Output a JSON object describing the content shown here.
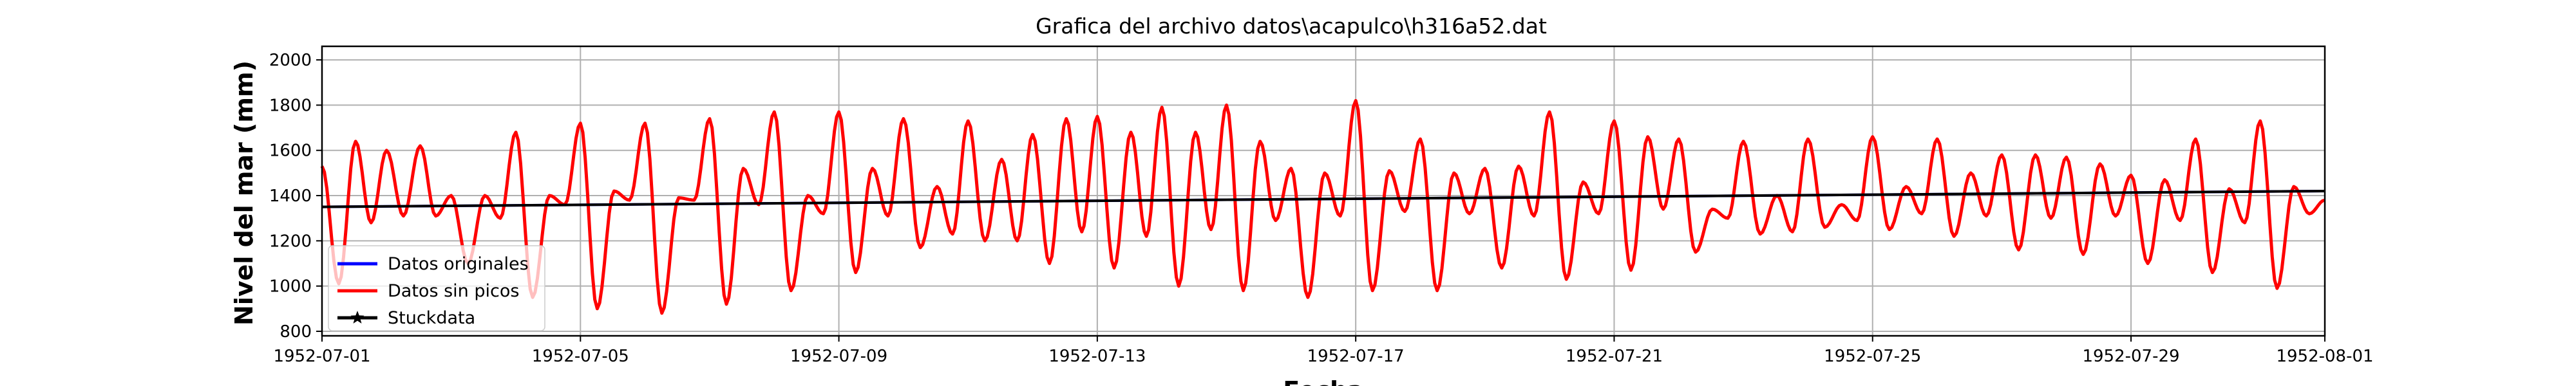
{
  "chart_data": {
    "type": "line",
    "title": "Grafica del archivo datos\\acapulco\\h316a52.dat",
    "xlabel": "Fecha",
    "ylabel": "Nivel del mar (mm)",
    "xlim": [
      "1952-07-01",
      "1952-08-01"
    ],
    "ylim": [
      780,
      2060
    ],
    "x_ticks": [
      "1952-07-01",
      "1952-07-05",
      "1952-07-09",
      "1952-07-13",
      "1952-07-17",
      "1952-07-21",
      "1952-07-25",
      "1952-07-29",
      "1952-08-01"
    ],
    "y_ticks": [
      800,
      1000,
      1200,
      1400,
      1600,
      1800,
      2000
    ],
    "grid": true,
    "legend_position": "lower-left",
    "series": [
      {
        "name": "Datos originales",
        "color": "#0000ff",
        "marker": "none",
        "note_hidden_under": "Datos sin picos",
        "x": [
          "1952-07-01",
          "1952-08-01"
        ],
        "y": [
          1350,
          1420
        ]
      },
      {
        "name": "Datos sin picos",
        "color": "#ff0000",
        "marker": "none",
        "x": [
          "1952-07-01",
          "1952-07-02",
          "1952-07-03",
          "1952-07-04",
          "1952-07-05",
          "1952-07-06",
          "1952-07-07",
          "1952-07-08",
          "1952-07-09",
          "1952-07-10",
          "1952-07-11",
          "1952-07-12",
          "1952-07-13",
          "1952-07-14",
          "1952-07-15",
          "1952-07-16",
          "1952-07-17",
          "1952-07-18",
          "1952-07-19",
          "1952-07-20",
          "1952-07-21",
          "1952-07-22",
          "1952-07-23",
          "1952-07-24",
          "1952-07-25",
          "1952-07-26",
          "1952-07-27",
          "1952-07-28",
          "1952-07-29",
          "1952-07-30",
          "1952-07-31",
          "1952-08-01"
        ],
        "high_1": [
          1530,
          1600,
          1400,
          1680,
          1720,
          1720,
          1740,
          1770,
          1770,
          1740,
          1730,
          1670,
          1750,
          1790,
          1800,
          1520,
          1820,
          1650,
          1520,
          1770,
          1730,
          1650,
          1640,
          1650,
          1660,
          1650,
          1580,
          1570,
          1490,
          1650,
          1730,
          1380
        ],
        "low_1": [
          1010,
          1310,
          1100,
          950,
          900,
          880,
          920,
          980,
          1060,
          1170,
          1200,
          1100,
          1080,
          1000,
          980,
          950,
          980,
          980,
          1080,
          1030,
          1070,
          1150,
          1230,
          1260,
          1250,
          1220,
          1160,
          1140,
          1100,
          1060,
          990,
          1300
        ],
        "high_2": [
          1640,
          1620,
          1400,
          1400,
          1420,
          1390,
          1520,
          1400,
          1520,
          1440,
          1560,
          1740,
          1680,
          1680,
          1640,
          1500,
          1510,
          1500,
          1530,
          1460,
          1660,
          1340,
          1400,
          1360,
          1440,
          1500,
          1580,
          1540,
          1470,
          1430,
          1440,
          1420
        ],
        "low_2": [
          1280,
          1310,
          1300,
          1360,
          1380,
          1380,
          1360,
          1320,
          1310,
          1230,
          1200,
          1240,
          1220,
          1250,
          1290,
          1310,
          1330,
          1320,
          1310,
          1320,
          1340,
          1300,
          1240,
          1290,
          1320,
          1310,
          1300,
          1310,
          1290,
          1280,
          1320,
          1340
        ]
      },
      {
        "name": "Stuckdata",
        "color": "#000000",
        "marker": "*",
        "x": [
          "1952-07-01",
          "1952-08-01"
        ],
        "y": [
          1350,
          1420
        ]
      }
    ]
  }
}
